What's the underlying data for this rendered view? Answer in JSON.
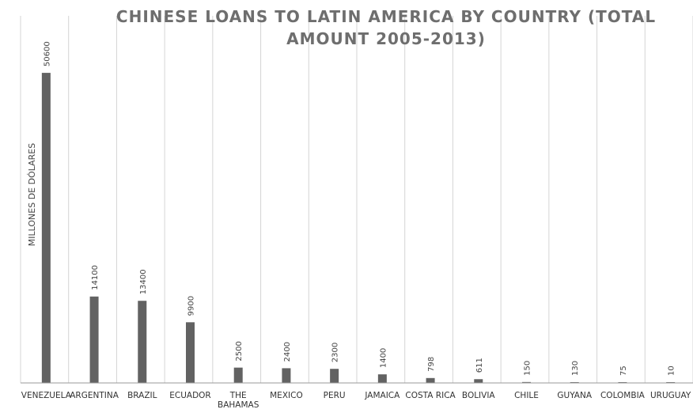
{
  "chart_data": {
    "type": "bar",
    "title_lines": [
      "CHINESE LOANS TO LATIN AMERICA BY COUNTRY (TOTAL",
      "AMOUNT 2005-2013)"
    ],
    "ylabel": "MILLONES DE DÓLARES",
    "xlabel": "",
    "categories": [
      [
        "VENEZUELA"
      ],
      [
        "ARGENTINA"
      ],
      [
        "BRAZIL"
      ],
      [
        "ECUADOR"
      ],
      [
        "THE",
        "BAHAMAS"
      ],
      [
        "MEXICO"
      ],
      [
        "PERU"
      ],
      [
        "JAMAICA"
      ],
      [
        "COSTA RICA"
      ],
      [
        "BOLIVIA"
      ],
      [
        "CHILE"
      ],
      [
        "GUYANA"
      ],
      [
        "COLOMBIA"
      ],
      [
        "URUGUAY"
      ]
    ],
    "values": [
      50600,
      14100,
      13400,
      9900,
      2500,
      2400,
      2300,
      1400,
      798,
      611,
      150,
      130,
      75,
      10
    ],
    "ylim": [
      0,
      55000
    ],
    "grid": "vertical",
    "legend": "none",
    "bar_color": "#626262"
  }
}
